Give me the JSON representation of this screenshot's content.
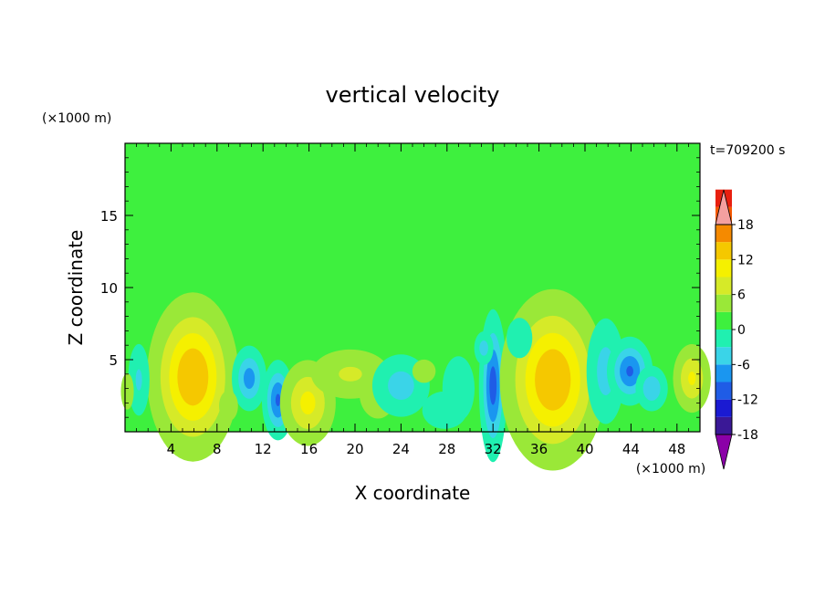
{
  "chart_data": {
    "type": "heatmap",
    "title": "vertical velocity",
    "xlabel": "X coordinate",
    "ylabel": "Z coordinate",
    "x_unit": "(×1000 m)",
    "y_unit": "(×1000 m)",
    "time_label": "t=709200 s",
    "xlim": [
      0,
      50
    ],
    "ylim": [
      0,
      20
    ],
    "x_ticks": [
      "4",
      "8",
      "12",
      "16",
      "20",
      "24",
      "28",
      "32",
      "36",
      "40",
      "44",
      "48"
    ],
    "y_ticks": [
      "5",
      "10",
      "15"
    ],
    "colorbar": {
      "min": -21,
      "max": 21,
      "step": 3,
      "tick_labels": [
        "18",
        "12",
        "6",
        "0",
        "-6",
        "-12",
        "-18"
      ],
      "tick_values": [
        18,
        12,
        6,
        0,
        -6,
        -12,
        -18
      ],
      "colors": [
        "#8b00a8",
        "#3a1896",
        "#1a1ad2",
        "#1f5ce6",
        "#1a96f0",
        "#3ad4e8",
        "#20f0b0",
        "#3ef03e",
        "#9ae838",
        "#d6ea28",
        "#f5f000",
        "#f5c800",
        "#f58a00",
        "#f55800",
        "#e82010",
        "#f4a0a0"
      ],
      "over_color": "#f4a0a0",
      "under_color": "#8b00a8"
    },
    "background_value": 0,
    "features": [
      {
        "x": 5.9,
        "z": 3.8,
        "sx": 1.9,
        "sz": 2.8,
        "value": 13.5
      },
      {
        "x": 10.8,
        "z": 3.7,
        "sx": 0.8,
        "sz": 1.2,
        "value": -9
      },
      {
        "x": 13.3,
        "z": 2.2,
        "sx": 0.7,
        "sz": 1.4,
        "value": -11
      },
      {
        "x": 15.9,
        "z": 2.0,
        "sx": 1.3,
        "sz": 1.6,
        "value": 8.5
      },
      {
        "x": 19.6,
        "z": 4.0,
        "sx": 2.2,
        "sz": 1.1,
        "value": 5
      },
      {
        "x": 22.0,
        "z": 2.8,
        "sx": 1.4,
        "sz": 1.6,
        "value": 3
      },
      {
        "x": 24.0,
        "z": 3.2,
        "sx": 1.5,
        "sz": 1.3,
        "value": -6
      },
      {
        "x": 29.0,
        "z": 3.0,
        "sx": 1.0,
        "sz": 1.6,
        "value": -4
      },
      {
        "x": 32.0,
        "z": 3.2,
        "sx": 0.6,
        "sz": 2.6,
        "value": -12
      },
      {
        "x": 31.2,
        "z": 5.8,
        "sx": 0.5,
        "sz": 0.7,
        "value": -6
      },
      {
        "x": 37.2,
        "z": 3.6,
        "sx": 2.2,
        "sz": 3.0,
        "value": 13.5
      },
      {
        "x": 41.8,
        "z": 4.2,
        "sx": 1.0,
        "sz": 2.2,
        "value": -6
      },
      {
        "x": 43.9,
        "z": 4.2,
        "sx": 1.0,
        "sz": 1.2,
        "value": -11
      },
      {
        "x": 45.8,
        "z": 3.0,
        "sx": 0.8,
        "sz": 0.9,
        "value": -7
      },
      {
        "x": 49.3,
        "z": 3.7,
        "sx": 0.9,
        "sz": 1.3,
        "value": 8
      },
      {
        "x": 1.2,
        "z": 3.6,
        "sx": 0.6,
        "sz": 1.6,
        "value": -5
      },
      {
        "x": 0.2,
        "z": 2.8,
        "sx": 0.4,
        "sz": 0.9,
        "value": 4
      },
      {
        "x": 26.0,
        "z": 4.2,
        "sx": 1.0,
        "sz": 0.8,
        "value": 2.5
      },
      {
        "x": 27.8,
        "z": 1.5,
        "sx": 1.5,
        "sz": 1.0,
        "value": -3.5
      },
      {
        "x": 34.3,
        "z": 6.5,
        "sx": 0.8,
        "sz": 1.0,
        "value": -4
      },
      {
        "x": 9.0,
        "z": 1.8,
        "sx": 0.7,
        "sz": 0.9,
        "value": 3
      }
    ]
  }
}
